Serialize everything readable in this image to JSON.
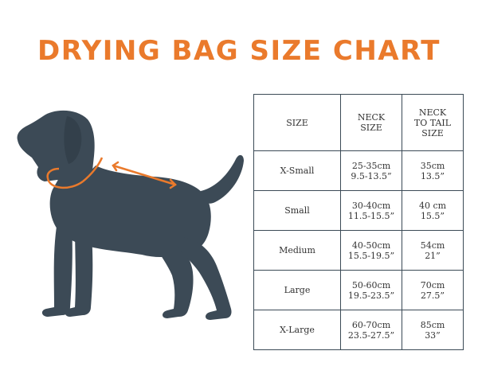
{
  "title": "DRYING BAG SIZE CHART",
  "colors": {
    "accent": "#ea7a2c",
    "dog": "#3c4a56",
    "border": "#3b4a56"
  },
  "illustration": {
    "icon": "dog-silhouette-icon",
    "markers": [
      "neck-circle-icon",
      "neck-to-tail-arrow-icon"
    ]
  },
  "table": {
    "headers": [
      {
        "lines": [
          "SIZE"
        ]
      },
      {
        "lines": [
          "NECK",
          "SIZE"
        ]
      },
      {
        "lines": [
          "NECK",
          "TO TAIL",
          "SIZE"
        ]
      }
    ],
    "rows": [
      {
        "size": "X-Small",
        "neck_cm": "25-35cm",
        "neck_in": "9.5-13.5”",
        "length_cm": "35cm",
        "length_in": "13.5”"
      },
      {
        "size": "Small",
        "neck_cm": "30-40cm",
        "neck_in": "11.5-15.5”",
        "length_cm": "40 cm",
        "length_in": "15.5”"
      },
      {
        "size": "Medium",
        "neck_cm": "40-50cm",
        "neck_in": "15.5-19.5”",
        "length_cm": "54cm",
        "length_in": "21”"
      },
      {
        "size": "Large",
        "neck_cm": "50-60cm",
        "neck_in": "19.5-23.5”",
        "length_cm": "70cm",
        "length_in": "27.5”"
      },
      {
        "size": "X-Large",
        "neck_cm": "60-70cm",
        "neck_in": "23.5-27.5”",
        "length_cm": "85cm",
        "length_in": "33”"
      }
    ]
  }
}
